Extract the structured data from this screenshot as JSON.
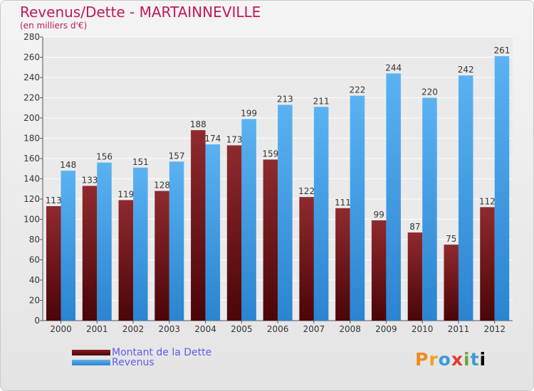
{
  "chart_data": {
    "type": "bar",
    "title": "Revenus/Dette - MARTAINNEVILLE",
    "subtitle": "(en milliers d'€)",
    "categories": [
      "2000",
      "2001",
      "2002",
      "2003",
      "2004",
      "2005",
      "2006",
      "2007",
      "2008",
      "2009",
      "2010",
      "2011",
      "2012"
    ],
    "series": [
      {
        "name": "Montant de la Dette",
        "color": "#6b0f14",
        "values": [
          113,
          133,
          119,
          128,
          188,
          173,
          159,
          122,
          111,
          99,
          87,
          75,
          112
        ]
      },
      {
        "name": "Revenus",
        "color": "#3d9be9",
        "values": [
          148,
          156,
          151,
          157,
          174,
          199,
          213,
          211,
          222,
          244,
          220,
          242,
          261
        ]
      }
    ],
    "ylim": [
      0,
      280
    ],
    "yticks": [
      0,
      20,
      40,
      60,
      80,
      100,
      120,
      140,
      160,
      180,
      200,
      220,
      240,
      260,
      280
    ],
    "grid": true,
    "legend_position": "bottom-left"
  },
  "branding": {
    "logo_letters": [
      "P",
      "r",
      "o",
      "x",
      "i",
      "t",
      "i"
    ]
  }
}
